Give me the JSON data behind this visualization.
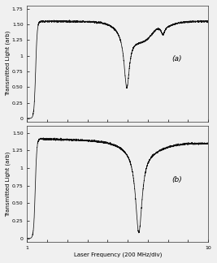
{
  "figsize": [
    2.67,
    3.24
  ],
  "dpi": 100,
  "background_color": "#f0f0f0",
  "plot_bg": "#f0f0f0",
  "line_color": "#111111",
  "xlabel": "Laser Frequency (200 MHz/div)",
  "ylabel": "Transmitted Light (arb)",
  "xmin": 1,
  "xmax": 10,
  "panel_a_label": "(a)",
  "panel_b_label": "(b)",
  "yticks_a": [
    0,
    0.25,
    0.5,
    0.75,
    1.0,
    1.25,
    1.5,
    1.75
  ],
  "yticks_b": [
    0,
    0.25,
    0.5,
    0.75,
    1.0,
    1.25,
    1.5
  ],
  "tick_label_fontsize": 4.5,
  "axis_label_fontsize": 5.0,
  "panel_label_fontsize": 6.5,
  "noise_std": 0.006
}
